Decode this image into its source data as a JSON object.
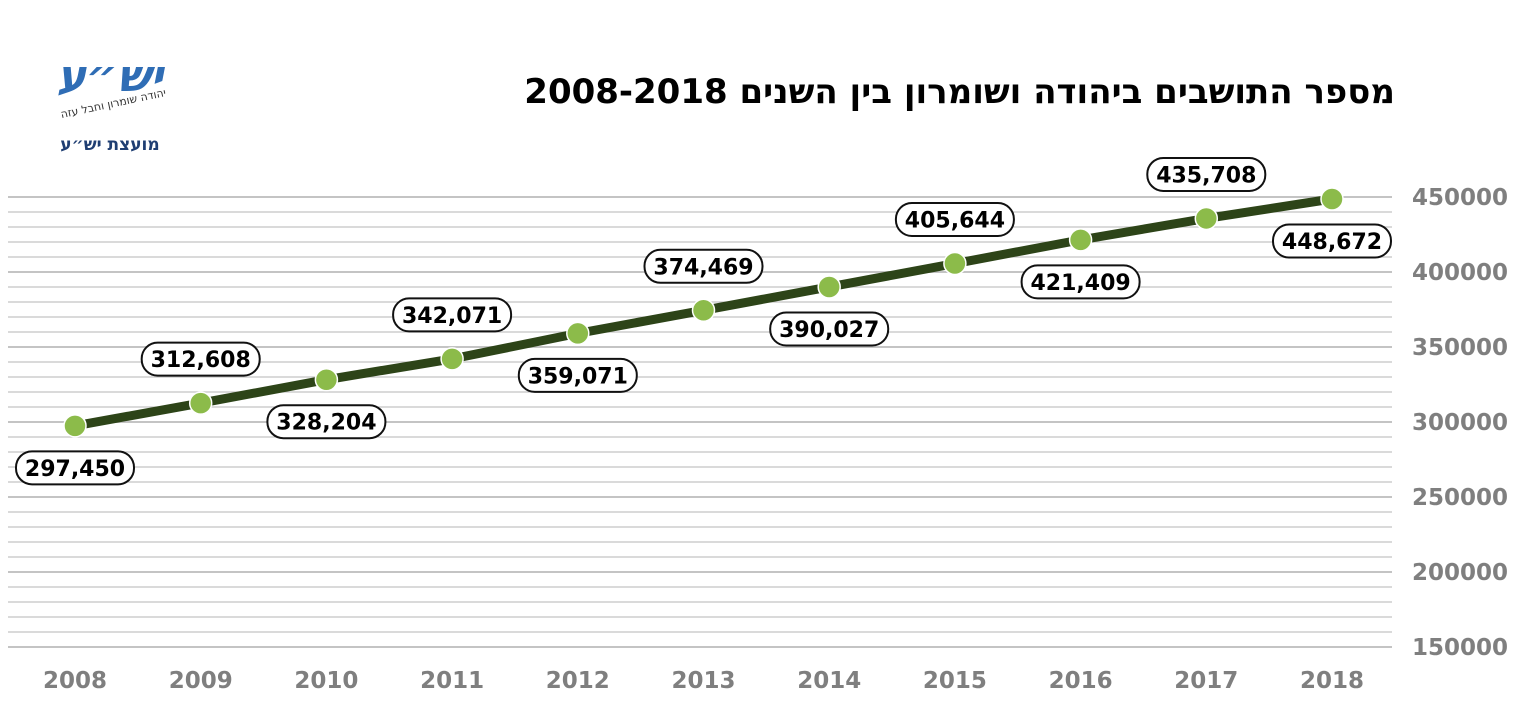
{
  "logo": {
    "mark_text": "יש״ע",
    "ribbon_text": "יהודה שומרון וחבל עזה",
    "tagline": "מועצת יש״ע"
  },
  "colors": {
    "line": "#2d4418",
    "marker": "#8cbb4a",
    "grid": "#c4c4c4",
    "axis_text": "#7f7f7f",
    "logo": "#2f6db5"
  },
  "chart_data": {
    "type": "line",
    "title": "מספר התושבים ביהודה ושומרון בין השנים 2008-2018",
    "xlabel": "",
    "ylabel": "",
    "categories": [
      "2008",
      "2009",
      "2010",
      "2011",
      "2012",
      "2013",
      "2014",
      "2015",
      "2016",
      "2017",
      "2018"
    ],
    "series": [
      {
        "values": [
          297450,
          312608,
          328204,
          342071,
          359071,
          374469,
          390027,
          405644,
          421409,
          435708,
          448672
        ],
        "labels": [
          "297,450",
          "312,608",
          "328,204",
          "342,071",
          "359,071",
          "374,469",
          "390,027",
          "405,644",
          "421,409",
          "435,708",
          "448,672"
        ],
        "label_positions": [
          "below",
          "above",
          "below",
          "above",
          "below",
          "above",
          "below",
          "above",
          "below",
          "above",
          "below"
        ]
      }
    ],
    "ylim": [
      150000,
      450000
    ],
    "y_ticks": [
      150000,
      200000,
      250000,
      300000,
      350000,
      400000,
      450000
    ],
    "y_tick_labels": [
      "150000",
      "200000",
      "250000",
      "300000",
      "350000",
      "400000",
      "450000"
    ],
    "y_axis_side": "right",
    "grid": true,
    "legend": "none"
  }
}
